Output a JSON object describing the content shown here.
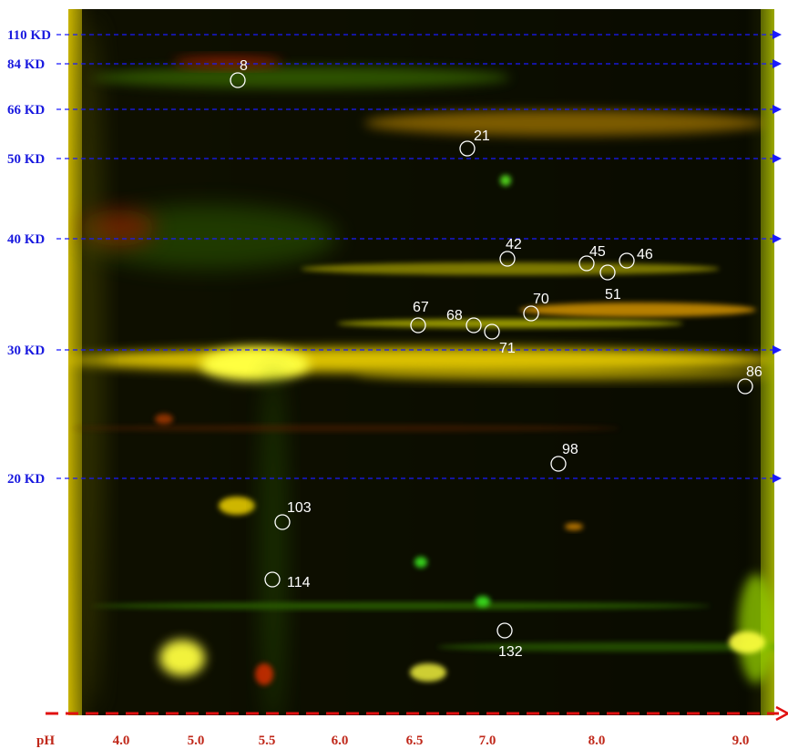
{
  "molecular_weight_markers": [
    "110 KD",
    "84 KD",
    "66 KD",
    "50 KD",
    "40 KD",
    "30 KD",
    "20 KD"
  ],
  "ph_axis": {
    "title": "pH",
    "labels": [
      "4.0",
      "5.0",
      "5.5",
      "6.0",
      "6.5",
      "7.0",
      "8.0",
      "9.0"
    ]
  },
  "spots": [
    "8",
    "21",
    "42",
    "45",
    "46",
    "51",
    "67",
    "68",
    "70",
    "71",
    "86",
    "98",
    "103",
    "114",
    "132"
  ]
}
